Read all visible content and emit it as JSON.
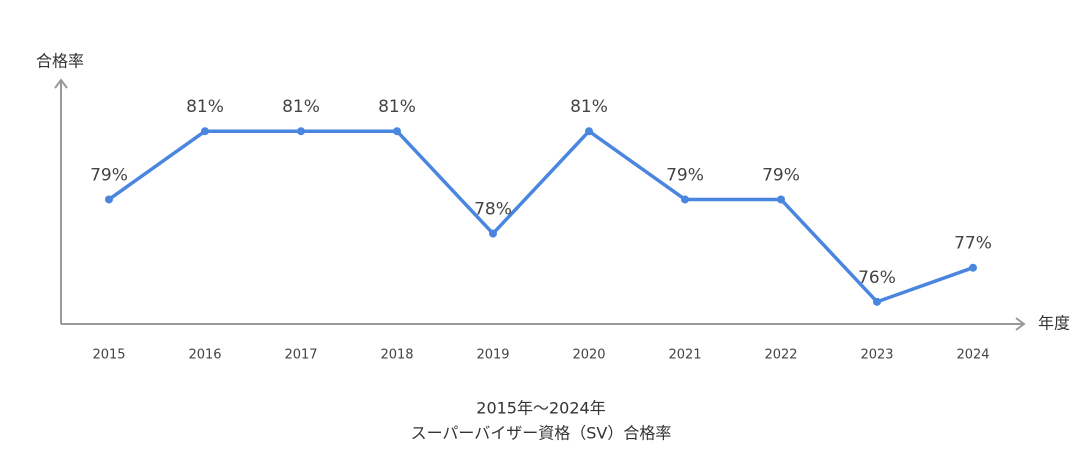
{
  "chart_data": {
    "type": "line",
    "title": [
      "2015年～2024年",
      "スーパーバイザー資格（SV）合格率"
    ],
    "y_label": "合格率",
    "x_label": "年度",
    "categories": [
      "2015",
      "2016",
      "2017",
      "2018",
      "2019",
      "2020",
      "2021",
      "2022",
      "2023",
      "2024"
    ],
    "series": [
      {
        "name": "合格率",
        "color": "#4a86e0",
        "values": [
          79,
          81,
          81,
          81,
          78,
          81,
          79,
          79,
          76,
          77
        ],
        "value_labels": [
          "79%",
          "81%",
          "81%",
          "81%",
          "78%",
          "81%",
          "79%",
          "79%",
          "76%",
          "77%"
        ]
      }
    ],
    "ylim": [
      75.35,
      82.5
    ]
  }
}
